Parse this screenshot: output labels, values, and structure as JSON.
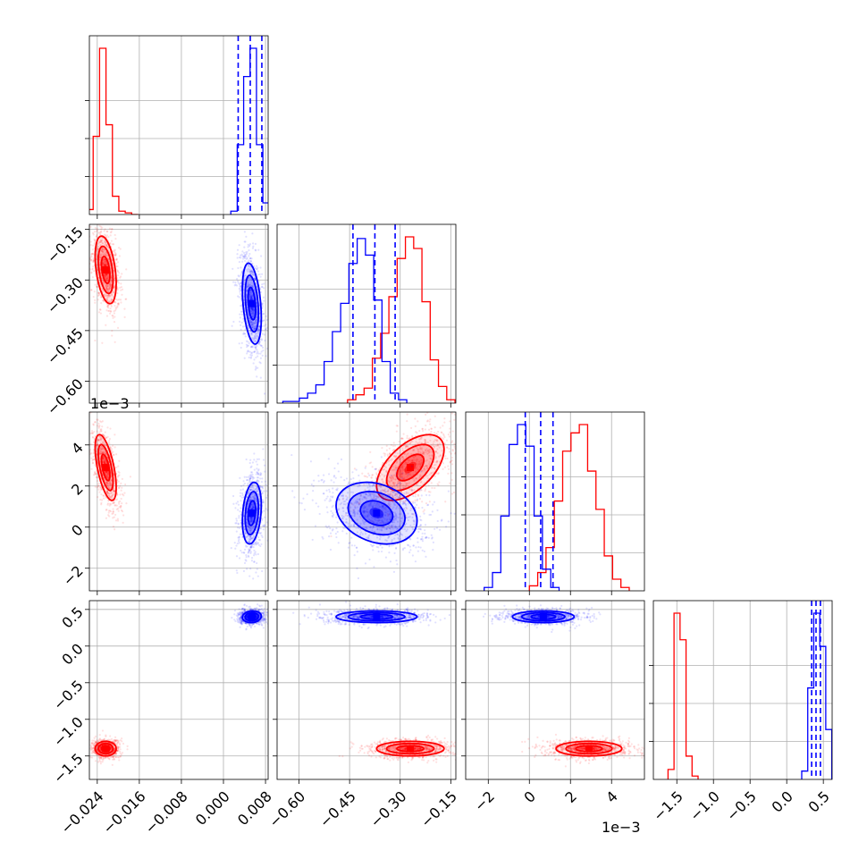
{
  "chart_data": {
    "type": "corner",
    "parameters": 4,
    "grid": true,
    "colors": {
      "red": "#ff0000",
      "blue": "#0000ff"
    },
    "axis_ranges": {
      "p0": [
        -0.0255,
        0.0085
      ],
      "p1": [
        -0.665,
        -0.135
      ],
      "p2": [
        -0.0031,
        0.0056
      ],
      "p3": [
        -1.82,
        0.62
      ]
    },
    "tick_labels": {
      "p0": [
        "−0.024",
        "−0.016",
        "−0.008",
        "0.000",
        "0.008"
      ],
      "p1": [
        "−0.60",
        "−0.45",
        "−0.30",
        "−0.15"
      ],
      "p2": [
        "−2",
        "0",
        "2",
        "4"
      ],
      "p3": [
        "−1.5",
        "−1.0",
        "−0.5",
        "0.0",
        "0.5"
      ]
    },
    "tick_values": {
      "p0": [
        -0.024,
        -0.016,
        -0.008,
        0.0,
        0.008
      ],
      "p1": [
        -0.6,
        -0.45,
        -0.3,
        -0.15
      ],
      "p2": [
        -0.002,
        0.0,
        0.002,
        0.004
      ],
      "p3": [
        -1.5,
        -1.0,
        -0.5,
        0.0,
        0.5
      ]
    },
    "offset_label": "1e−3",
    "series": [
      {
        "color": "red",
        "mean": [
          -0.0224,
          -0.27,
          0.0029,
          -1.4
        ],
        "std": [
          0.001,
          0.05,
          0.0008,
          0.05
        ],
        "corr": {
          "0_1": -0.4,
          "0_2": -0.6,
          "1_2": 0.55,
          "0_3": 0.0,
          "1_3": 0.0,
          "2_3": 0.0
        },
        "quantiles": null,
        "hist": {
          "p0": {
            "start": -0.026,
            "width": 0.00122,
            "counts": [
              0.03,
              0.47,
              1.0,
              0.54,
              0.11,
              0.02,
              0.01,
              0.0
            ]
          },
          "p1": {
            "start": -0.456,
            "width": 0.0245,
            "counts": [
              0.02,
              0.05,
              0.09,
              0.27,
              0.42,
              0.64,
              0.87,
              1.0,
              0.93,
              0.61,
              0.26,
              0.1,
              0.02
            ]
          },
          "p2": {
            "start": 0.0,
            "width": 0.000405,
            "counts": [
              0.03,
              0.11,
              0.26,
              0.54,
              0.84,
              0.95,
              1.0,
              0.72,
              0.49,
              0.21,
              0.07,
              0.02
            ]
          },
          "p3": {
            "start": -1.62,
            "width": 0.082,
            "counts": [
              0.06,
              1.0,
              0.84,
              0.14,
              0.02
            ]
          }
        }
      },
      {
        "color": "blue",
        "mean": [
          0.0054,
          -0.37,
          0.00068,
          0.4
        ],
        "std": [
          0.0009,
          0.06,
          0.00075,
          0.04
        ],
        "corr": {
          "0_1": -0.35,
          "0_2": 0.25,
          "1_2": -0.25,
          "0_3": 0.1,
          "1_3": 0.0,
          "2_3": 0.0
        },
        "quantiles": {
          "p0": [
            0.0028,
            0.0051,
            0.0073
          ],
          "p1": [
            -0.44,
            -0.375,
            -0.315
          ],
          "p2": [
            -0.0002,
            0.00055,
            0.00115
          ],
          "p3": [
            0.34,
            0.4,
            0.46
          ]
        },
        "hist": {
          "p0": {
            "start": 0.0014,
            "width": 0.00122,
            "counts": [
              0.02,
              0.42,
              0.83,
              1.0,
              0.42,
              0.07
            ]
          },
          "p1": {
            "start": -0.648,
            "width": 0.0245,
            "counts": [
              0.01,
              0.01,
              0.03,
              0.06,
              0.11,
              0.25,
              0.43,
              0.6,
              0.84,
              0.99,
              0.89,
              0.62,
              0.25,
              0.06,
              0.02
            ]
          },
          "p2": {
            "start": -0.0022,
            "width": 0.000405,
            "counts": [
              0.02,
              0.11,
              0.45,
              0.88,
              1.0,
              0.87,
              0.45,
              0.13,
              0.02
            ]
          },
          "p3": {
            "start": 0.205,
            "width": 0.082,
            "counts": [
              0.05,
              0.55,
              1.0,
              0.8,
              0.3
            ]
          }
        }
      }
    ]
  }
}
